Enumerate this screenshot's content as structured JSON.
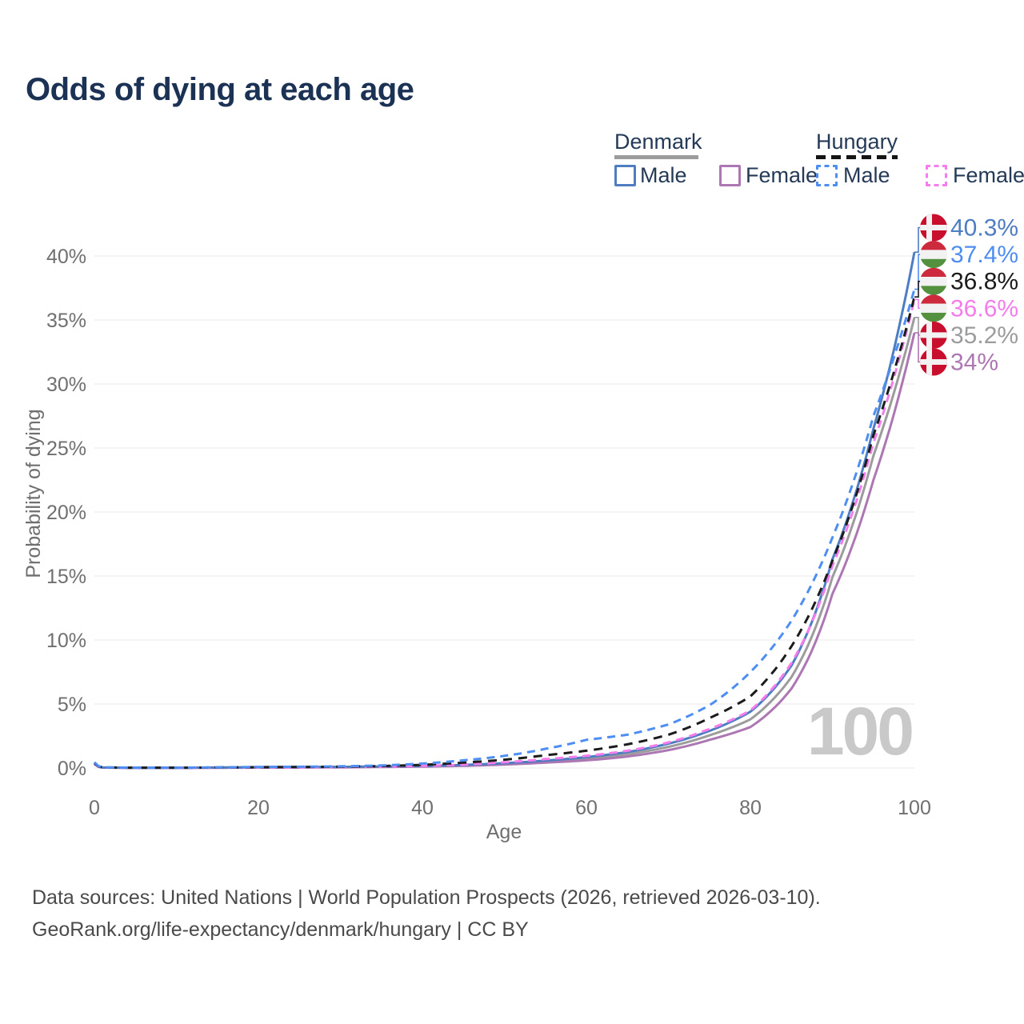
{
  "title": "Odds of dying at each age",
  "legend": {
    "denmark": {
      "title": "Denmark",
      "male": "Male",
      "female": "Female"
    },
    "hungary": {
      "title": "Hungary",
      "male": "Male",
      "female": "Female"
    }
  },
  "axes": {
    "x_label": "Age",
    "y_label": "Probability of dying"
  },
  "watermark_age": "100",
  "footer": {
    "line1": "Data sources: United Nations | World Population Prospects (2026, retrieved 2026-03-10).",
    "line2": "GeoRank.org/life-expectancy/denmark/hungary | CC BY"
  },
  "colors": {
    "title_text": "#1c3254",
    "legend_text": "#243a57",
    "axis_text": "#6f6f6f",
    "grid": "#ededed",
    "footer_text": "#4a4a4a",
    "watermark": "#c9c9c9",
    "denmark_underline": "#9c9c9c",
    "hungary_underline": "#151515",
    "denmark_male": "#4e7dc1",
    "denmark_female": "#ac77b2",
    "denmark_both": "#9c9c9c",
    "hungary_male": "#4e8ef2",
    "hungary_female": "#f57ced",
    "hungary_both": "#1c1c1c",
    "flag_denmark_red": "#c8102e",
    "flag_hungary_red": "#cd2a3e",
    "flag_hungary_green": "#53913f",
    "flag_white": "#f2f2f2"
  },
  "chart_data": {
    "type": "line",
    "title": "Odds of dying at each age",
    "xlabel": "Age",
    "ylabel": "Probability of dying",
    "xlim": [
      0,
      100
    ],
    "ylim": [
      0,
      42
    ],
    "grid": "horizontal",
    "x_ticks": [
      0,
      20,
      40,
      60,
      80,
      100
    ],
    "y_ticks": [
      {
        "label": "0%",
        "value": 0
      },
      {
        "label": "5%",
        "value": 5
      },
      {
        "label": "10%",
        "value": 10
      },
      {
        "label": "15%",
        "value": 15
      },
      {
        "label": "20%",
        "value": 20
      },
      {
        "label": "25%",
        "value": 25
      },
      {
        "label": "30%",
        "value": 30
      },
      {
        "label": "35%",
        "value": 35
      },
      {
        "label": "40%",
        "value": 40
      }
    ],
    "hovered_age": "100",
    "ages": [
      0,
      1,
      5,
      10,
      15,
      20,
      25,
      30,
      35,
      40,
      45,
      50,
      55,
      60,
      65,
      70,
      75,
      80,
      85,
      90,
      95,
      100
    ],
    "series": [
      {
        "id": "denmark_both",
        "name": "Denmark both sexes",
        "country": "denmark",
        "line": "solid",
        "color_key": "denmark_both",
        "values": [
          0.32,
          0.035,
          0.018,
          0.018,
          0.03,
          0.05,
          0.06,
          0.07,
          0.1,
          0.13,
          0.2,
          0.32,
          0.5,
          0.72,
          1.08,
          1.65,
          2.55,
          3.8,
          7.1,
          14.9,
          24.4,
          35.2
        ],
        "end_label": "35.2%"
      },
      {
        "id": "denmark_female",
        "name": "Denmark female",
        "country": "denmark",
        "line": "solid",
        "color_key": "denmark_female",
        "values": [
          0.3,
          0.03,
          0.015,
          0.015,
          0.02,
          0.03,
          0.04,
          0.05,
          0.08,
          0.11,
          0.17,
          0.27,
          0.42,
          0.6,
          0.9,
          1.4,
          2.2,
          3.2,
          6.2,
          13.6,
          22.5,
          34.0
        ],
        "end_label": "34%"
      },
      {
        "id": "denmark_male",
        "name": "Denmark male",
        "country": "denmark",
        "line": "solid",
        "color_key": "denmark_male",
        "values": [
          0.35,
          0.04,
          0.02,
          0.02,
          0.04,
          0.07,
          0.08,
          0.09,
          0.12,
          0.16,
          0.24,
          0.38,
          0.58,
          0.85,
          1.25,
          1.9,
          2.9,
          4.4,
          8.0,
          16.3,
          26.5,
          40.3
        ],
        "end_label": "40.3%"
      },
      {
        "id": "hungary_female",
        "name": "Hungary female",
        "country": "hungary",
        "line": "dashed",
        "color_key": "hungary_female",
        "values": [
          0.38,
          0.04,
          0.02,
          0.02,
          0.03,
          0.04,
          0.05,
          0.07,
          0.11,
          0.17,
          0.27,
          0.45,
          0.7,
          0.95,
          1.35,
          2.0,
          3.05,
          4.5,
          8.2,
          15.8,
          25.4,
          36.6
        ],
        "end_label": "36.6%"
      },
      {
        "id": "hungary_both",
        "name": "Hungary both sexes",
        "country": "hungary",
        "line": "dashed",
        "color_key": "hungary_both",
        "values": [
          0.4,
          0.045,
          0.022,
          0.022,
          0.04,
          0.06,
          0.08,
          0.1,
          0.15,
          0.25,
          0.42,
          0.65,
          1.0,
          1.35,
          1.85,
          2.6,
          3.9,
          5.6,
          9.5,
          16.2,
          26.0,
          36.8
        ],
        "end_label": "36.8%"
      },
      {
        "id": "hungary_male",
        "name": "Hungary male",
        "country": "hungary",
        "line": "dashed",
        "color_key": "hungary_male",
        "values": [
          0.45,
          0.05,
          0.025,
          0.025,
          0.05,
          0.08,
          0.1,
          0.13,
          0.2,
          0.35,
          0.6,
          0.95,
          1.5,
          2.2,
          2.6,
          3.4,
          4.9,
          7.5,
          11.5,
          18.0,
          27.5,
          37.4
        ],
        "end_label": "37.4%"
      }
    ]
  }
}
